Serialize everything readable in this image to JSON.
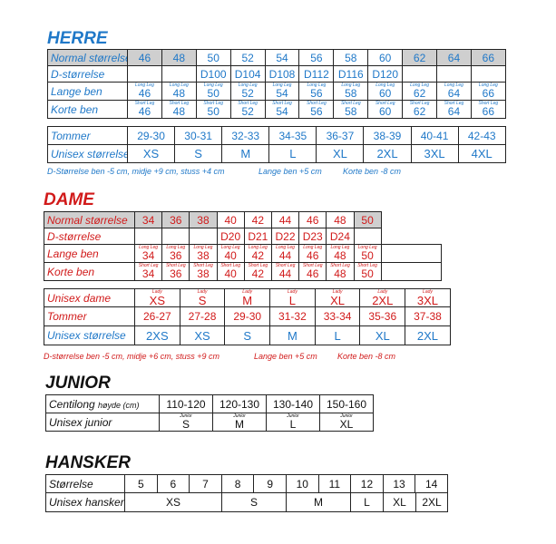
{
  "herre": {
    "title": "HERRE",
    "row_labels": [
      "Normal størrelse",
      "D-størrelse",
      "Lange ben",
      "Korte ben",
      "Tommer",
      "Unisex størrelse"
    ],
    "normal": [
      "46",
      "48",
      "50",
      "52",
      "54",
      "56",
      "58",
      "60",
      "62",
      "64",
      "66"
    ],
    "d_sizes": [
      "",
      "",
      "D100",
      "D104",
      "D108",
      "D112",
      "D116",
      "D120",
      "",
      "",
      ""
    ],
    "long_leg_tag": "Long Leg",
    "short_leg_tag": "Short Leg",
    "lange": [
      "46",
      "48",
      "50",
      "52",
      "54",
      "56",
      "58",
      "60",
      "62",
      "64",
      "66"
    ],
    "korte": [
      "46",
      "48",
      "50",
      "52",
      "54",
      "56",
      "58",
      "60",
      "62",
      "64",
      "66"
    ],
    "tommer": [
      "29-30",
      "30-31",
      "32-33",
      "34-35",
      "36-37",
      "38-39",
      "40-41",
      "42-43"
    ],
    "unisex": [
      "XS",
      "S",
      "M",
      "L",
      "XL",
      "2XL",
      "3XL",
      "4XL"
    ],
    "note1": "D-Størrelse ben -5 cm, midje +9 cm, stuss +4 cm",
    "note2": "Lange ben +5 cm",
    "note3": "Korte ben -8 cm"
  },
  "dame": {
    "title": "DAME",
    "row_labels": [
      "Normal størrelse",
      "D-størrelse",
      "Lange ben",
      "Korte ben",
      "Unisex dame",
      "Tommer",
      "Unisex størrelse"
    ],
    "normal": [
      "34",
      "36",
      "38",
      "40",
      "42",
      "44",
      "46",
      "48",
      "50"
    ],
    "d_sizes": [
      "",
      "",
      "",
      "D20",
      "D21",
      "D22",
      "D23",
      "D24",
      ""
    ],
    "long_leg_tag": "Long Leg",
    "short_leg_tag": "Short Leg",
    "lady_tag": "Lady",
    "lange": [
      "34",
      "36",
      "38",
      "40",
      "42",
      "44",
      "46",
      "48",
      "50"
    ],
    "korte": [
      "34",
      "36",
      "38",
      "40",
      "42",
      "44",
      "46",
      "48",
      "50"
    ],
    "unisex_dame": [
      "XS",
      "S",
      "M",
      "L",
      "XL",
      "2XL",
      "3XL"
    ],
    "tommer": [
      "26-27",
      "27-28",
      "29-30",
      "31-32",
      "33-34",
      "35-36",
      "37-38"
    ],
    "unisex": [
      "2XS",
      "XS",
      "S",
      "M",
      "L",
      "XL",
      "2XL"
    ],
    "note1": "D-størrelse ben -5 cm, midje +6 cm, stuss +9 cm",
    "note2": "Lange ben +5 cm",
    "note3": "Korte ben -8 cm"
  },
  "junior": {
    "title": "JUNIOR",
    "row1_label": "Centilong",
    "row1_sub": "høyde (cm)",
    "heights": [
      "110-120",
      "120-130",
      "130-140",
      "150-160"
    ],
    "row2_label": "Unisex junior",
    "tag": "Junior",
    "sizes": [
      "S",
      "M",
      "L",
      "XL"
    ]
  },
  "hansker": {
    "title": "HANSKER",
    "row1_label": "Størrelse",
    "sizes": [
      "5",
      "6",
      "7",
      "8",
      "9",
      "10",
      "11",
      "12",
      "13",
      "14"
    ],
    "row2_label": "Unisex hansker",
    "unisex": [
      "XS",
      "S",
      "M",
      "L",
      "XL",
      "2XL"
    ]
  },
  "colors": {
    "blue": "#1f78c8",
    "red": "#d11a1a",
    "header_gray": "#cfcfcf"
  }
}
